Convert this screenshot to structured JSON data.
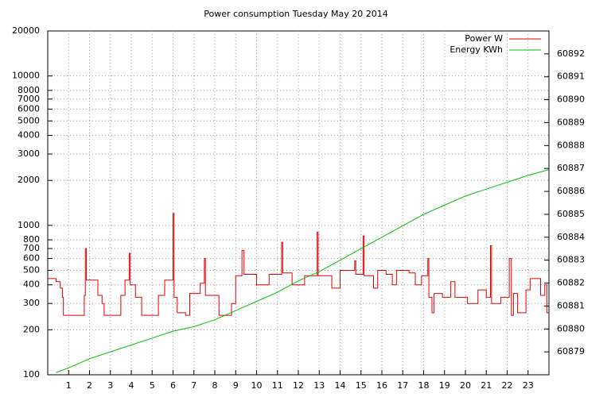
{
  "chart_data": {
    "type": "line",
    "title": "Power consumption Tuesday May 20 2014",
    "xlim": [
      0,
      24
    ],
    "xticks": [
      1,
      2,
      3,
      4,
      5,
      6,
      7,
      8,
      9,
      10,
      11,
      12,
      13,
      14,
      15,
      16,
      17,
      18,
      19,
      20,
      21,
      22,
      23
    ],
    "ylim": [
      100,
      20000
    ],
    "yscale": "log",
    "yticks": [
      100,
      200,
      300,
      400,
      500,
      600,
      700,
      800,
      1000,
      2000,
      3000,
      4000,
      5000,
      6000,
      7000,
      8000,
      10000,
      20000
    ],
    "y2lim": [
      60878,
      60893
    ],
    "y2ticks": [
      60879,
      60880,
      60881,
      60882,
      60883,
      60884,
      60885,
      60886,
      60887,
      60888,
      60889,
      60890,
      60891,
      60892
    ],
    "grid": true,
    "legend": "top-right",
    "series": [
      {
        "name": "Power W",
        "color": "#e00000",
        "style": "steps",
        "x": [
          0,
          0.4,
          0.6,
          0.7,
          0.75,
          1.75,
          1.8,
          1.85,
          2.4,
          2.6,
          2.7,
          3.5,
          3.7,
          3.9,
          3.95,
          4.2,
          4.5,
          5.3,
          5.6,
          6.0,
          6.05,
          6.2,
          6.6,
          6.8,
          7.3,
          7.5,
          7.55,
          8.2,
          8.8,
          9.0,
          9.3,
          9.4,
          10.0,
          10.6,
          11.2,
          11.25,
          11.7,
          12.3,
          12.9,
          12.95,
          13.6,
          14.0,
          14.7,
          14.75,
          15.1,
          15.15,
          15.6,
          15.8,
          16.2,
          16.5,
          16.7,
          17.3,
          17.6,
          17.9,
          18.2,
          18.25,
          18.4,
          18.5,
          18.9,
          19.3,
          19.5,
          20.1,
          20.6,
          21.0,
          21.2,
          21.25,
          21.7,
          22.1,
          22.2,
          22.3,
          22.5,
          22.9,
          23.1,
          23.6,
          23.8,
          23.9,
          24
        ],
        "values": [
          440,
          420,
          380,
          330,
          250,
          340,
          700,
          430,
          340,
          300,
          250,
          340,
          430,
          650,
          400,
          330,
          250,
          340,
          430,
          1200,
          330,
          260,
          250,
          350,
          410,
          600,
          340,
          250,
          300,
          460,
          680,
          470,
          400,
          470,
          770,
          480,
          400,
          460,
          900,
          460,
          380,
          500,
          580,
          470,
          850,
          460,
          380,
          500,
          470,
          400,
          500,
          480,
          400,
          460,
          600,
          330,
          260,
          350,
          330,
          420,
          330,
          300,
          370,
          330,
          730,
          300,
          330,
          600,
          250,
          350,
          260,
          370,
          440,
          340,
          400,
          260,
          260
        ]
      },
      {
        "name": "Energy KWh",
        "color": "#00c000",
        "axis": "y2",
        "x": [
          0.4,
          1,
          2,
          3,
          4,
          5,
          6,
          7,
          8,
          9,
          10,
          11,
          12,
          13,
          14,
          15,
          16,
          17,
          18,
          19,
          20,
          21,
          22,
          23,
          24
        ],
        "values": [
          60878.1,
          60878.3,
          60878.7,
          60879.0,
          60879.3,
          60879.6,
          60879.9,
          60880.1,
          60880.4,
          60880.8,
          60881.2,
          60881.6,
          60882.1,
          60882.5,
          60883.0,
          60883.5,
          60884.0,
          60884.5,
          60885.0,
          60885.4,
          60885.8,
          60886.1,
          60886.4,
          60886.7,
          60886.95
        ]
      }
    ]
  }
}
